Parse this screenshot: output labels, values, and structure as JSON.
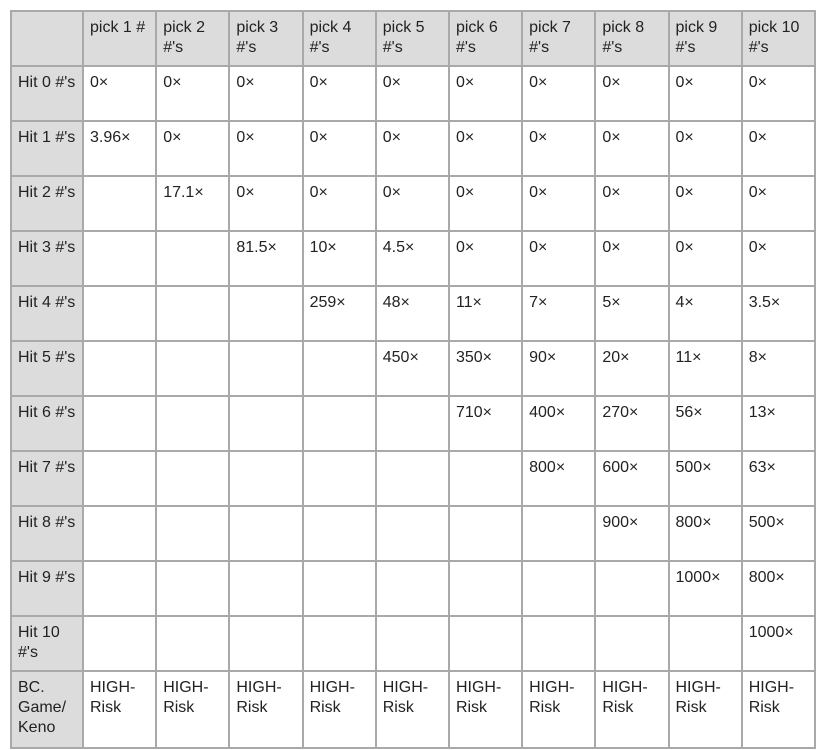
{
  "table": {
    "corner": "",
    "columns": [
      "pick 1 #",
      "pick 2 #'s",
      "pick 3 #'s",
      "pick 4 #'s",
      "pick 5 #'s",
      "pick 6 #'s",
      "pick 7 #'s",
      "pick 8 #'s",
      "pick 9 #'s",
      "pick 10 #'s"
    ],
    "rows": [
      {
        "label": "Hit 0 #'s",
        "cells": [
          "0×",
          "0×",
          "0×",
          "0×",
          "0×",
          "0×",
          "0×",
          "0×",
          "0×",
          "0×"
        ]
      },
      {
        "label": "Hit 1 #'s",
        "cells": [
          "3.96×",
          "0×",
          "0×",
          "0×",
          "0×",
          "0×",
          "0×",
          "0×",
          "0×",
          "0×"
        ]
      },
      {
        "label": "Hit 2 #'s",
        "cells": [
          "",
          "17.1×",
          "0×",
          "0×",
          "0×",
          "0×",
          "0×",
          "0×",
          "0×",
          "0×"
        ]
      },
      {
        "label": "Hit 3 #'s",
        "cells": [
          "",
          "",
          "81.5×",
          "10×",
          "4.5×",
          "0×",
          "0×",
          "0×",
          "0×",
          "0×"
        ]
      },
      {
        "label": "Hit 4 #'s",
        "cells": [
          "",
          "",
          "",
          "259×",
          "48×",
          "11×",
          "7×",
          "5×",
          "4×",
          "3.5×"
        ]
      },
      {
        "label": "Hit 5 #'s",
        "cells": [
          "",
          "",
          "",
          "",
          "450×",
          "350×",
          "90×",
          "20×",
          "11×",
          "8×"
        ]
      },
      {
        "label": "Hit 6 #'s",
        "cells": [
          "",
          "",
          "",
          "",
          "",
          "710×",
          "400×",
          "270×",
          "56×",
          "13×"
        ]
      },
      {
        "label": "Hit 7 #'s",
        "cells": [
          "",
          "",
          "",
          "",
          "",
          "",
          "800×",
          "600×",
          "500×",
          "63×"
        ]
      },
      {
        "label": "Hit 8 #'s",
        "cells": [
          "",
          "",
          "",
          "",
          "",
          "",
          "",
          "900×",
          "800×",
          "500×"
        ]
      },
      {
        "label": "Hit 9 #'s",
        "cells": [
          "",
          "",
          "",
          "",
          "",
          "",
          "",
          "",
          "1000×",
          "800×"
        ]
      },
      {
        "label": "Hit 10 #'s",
        "cells": [
          "",
          "",
          "",
          "",
          "",
          "",
          "",
          "",
          "",
          "1000×"
        ]
      },
      {
        "label": "BC. Game/ Keno",
        "cells": [
          "HIGH-Risk",
          "HIGH-Risk",
          "HIGH-Risk",
          "HIGH-Risk",
          "HIGH-Risk",
          "HIGH-Risk",
          "HIGH-Risk",
          "HIGH-Risk",
          "HIGH-Risk",
          "HIGH-Risk"
        ]
      }
    ]
  }
}
